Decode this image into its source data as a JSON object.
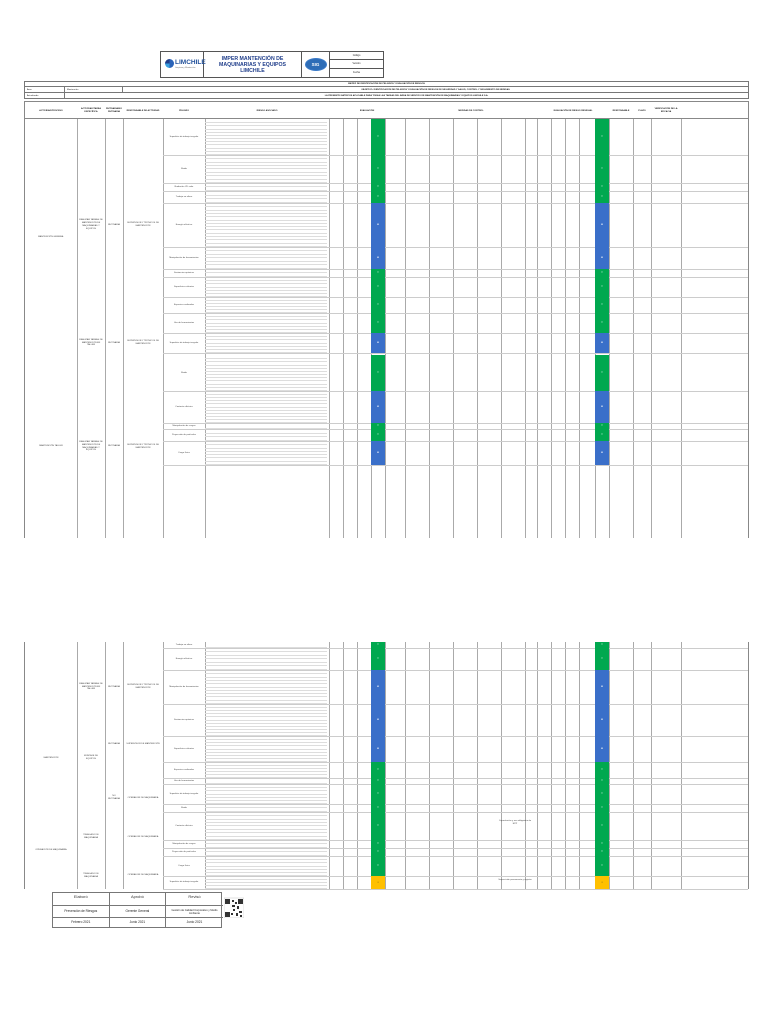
{
  "header": {
    "logo_text": "LIMCHILE",
    "logo_sub": "Limpieza y Mantención",
    "title_line1": "IMPER MANTENCIÓN DE MAQUINARIAS Y EQUIPOS",
    "title_line2": "LIMCHILE",
    "sig_badge": "SIG",
    "meta": [
      "Código",
      "Versión",
      "Fecha"
    ]
  },
  "info": {
    "row1_text": "MATRIZ DE IDENTIFICACIÓN DE PELIGROS Y EVALUACIÓN DE RIESGOS",
    "row2_label": "Área",
    "row2_value": "Mantención",
    "row2_text": "OBJETIVO: IDENTIFICACIÓN DE PELIGROS Y EVALUACIÓN DE RIESGOS DE SEGURIDAD Y SALUD, CONTROL Y SEGUIMIENTO DE MEDIDAS",
    "row3_label": "Actualizado",
    "row3_text": "LA PRESENTE MATRIZ ES APLICABLE PARA TODAS LAS TAREAS DEL ÁREA DE SERVICIO DE MANTENCIÓN DE MAQUINARIAS Y EQUIPOS LIMCHILE S.A."
  },
  "table_headers": [
    "ACTIVIDAD/PROCESO",
    "ACTIVIDAD/TAREA ESPECÍFICA",
    "RUTINARIA/NO RUTINARIA",
    "RESPONSABLE DE ACTIVIDAD",
    "PELIGRO",
    "RIESGO ASOCIADO",
    "EVALUACIÓN",
    "MEDIDAS DE CONTROL",
    "EVALUACIÓN DE RIESGO RESIDUAL",
    "RESPONSABLE",
    "PLAZO",
    "VERIFICACIÓN DE LA EFICACIA"
  ],
  "sheet1": {
    "process_a": "MANTENCIÓN GENERAL",
    "task_a": "REALIZAR TAREAS DE MANTENCIÓN DE MAQUINARIAS Y EQUIPOS",
    "routine_a": "RUTINARIA",
    "resp_a": "SUPERVISOR Y TÉCNICOS DE MANTENCIÓN",
    "process_b": "MANTENCIÓN TALLER",
    "task_b": "REALIZAR TAREAS DE MANTENCIÓN EN TALLER",
    "routine_b": "RUTINARIA",
    "resp_b": "SUPERVISOR Y TÉCNICOS DE MANTENCIÓN",
    "hazards": [
      "Superficie de trabajo irregular",
      "Ruido",
      "Radiación UV solar",
      "Trabajo en altura",
      "Energía eléctrica",
      "Manipulación de herramientas",
      "Sustancias químicas",
      "Superficies calientes",
      "Espacios confinados",
      "Uso de herramientas",
      "Superficie de trabajo irregular",
      "Ruido",
      "Contacto eléctrico",
      "Manipulación de cargas",
      "Proyección de partículas",
      "Carga física"
    ],
    "levels": [
      "TOLERABLE",
      "MODERADO",
      "IMPORTANTE"
    ]
  },
  "sheet2": {
    "process_a": "MANTENCIÓN",
    "task_a": "MONTAJE DE EQUIPOS",
    "routine_a": "RUTINARIA",
    "resp_a": "SUPERVISOR DE MANTENCIÓN",
    "process_b": "OPERACIÓN DE MAQUINARIA",
    "task_b": "TRASLADO DE MAQUINARIA",
    "routine_b": "NO RUTINARIA",
    "resp_b": "OPERADOR DE MAQUINARIA",
    "note_a": "Capacitación y uso obligatorio de EPP",
    "note_b": "Supervisión permanente y registro"
  },
  "signatures": {
    "labels": [
      "Elaboró",
      "Aprobó",
      "Revisó"
    ],
    "names": [
      "Prevención de Riesgos",
      "Gerente General",
      "Gestión de Calidad Corporativo y Medio Ambiente"
    ],
    "dates": [
      "Febrero 2021",
      "Junio 2021",
      "Junio 2021"
    ]
  }
}
